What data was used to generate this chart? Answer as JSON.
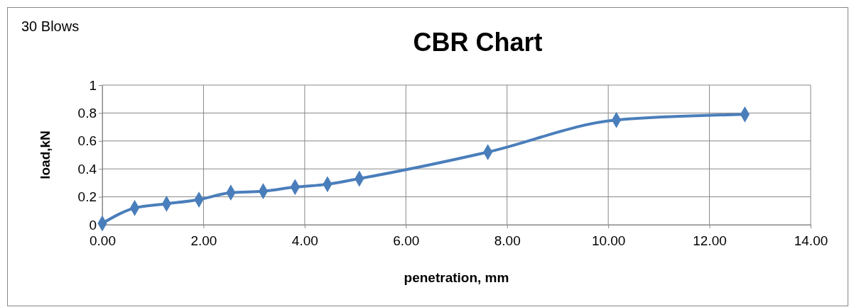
{
  "chart_data": {
    "type": "line",
    "title": "CBR Chart",
    "xlabel": "penetration, mm",
    "ylabel": "load,kN",
    "annotations": [
      "30 Blows"
    ],
    "x": [
      0,
      0.64,
      1.27,
      1.91,
      2.54,
      3.18,
      3.81,
      4.45,
      5.08,
      7.62,
      10.16,
      12.7
    ],
    "series": [
      {
        "color": "#4a7ebb",
        "values": [
          0.01,
          0.12,
          0.15,
          0.18,
          0.23,
          0.24,
          0.27,
          0.29,
          0.33,
          0.52,
          0.75,
          0.79
        ]
      }
    ],
    "xlim": [
      0,
      14
    ],
    "xticks": [
      {
        "value": 0,
        "label": "0.00"
      },
      {
        "value": 2,
        "label": "2.00"
      },
      {
        "value": 4,
        "label": "4.00"
      },
      {
        "value": 6,
        "label": "6.00"
      },
      {
        "value": 8,
        "label": "8.00"
      },
      {
        "value": 10,
        "label": "10.00"
      },
      {
        "value": 12,
        "label": "12.00"
      },
      {
        "value": 14,
        "label": "14.00"
      }
    ],
    "ylim": [
      0,
      1
    ],
    "yticks": [
      0,
      0.2,
      0.4,
      0.6,
      0.8,
      1
    ],
    "grid": true,
    "marker": "diamond",
    "line_style": "solid"
  }
}
